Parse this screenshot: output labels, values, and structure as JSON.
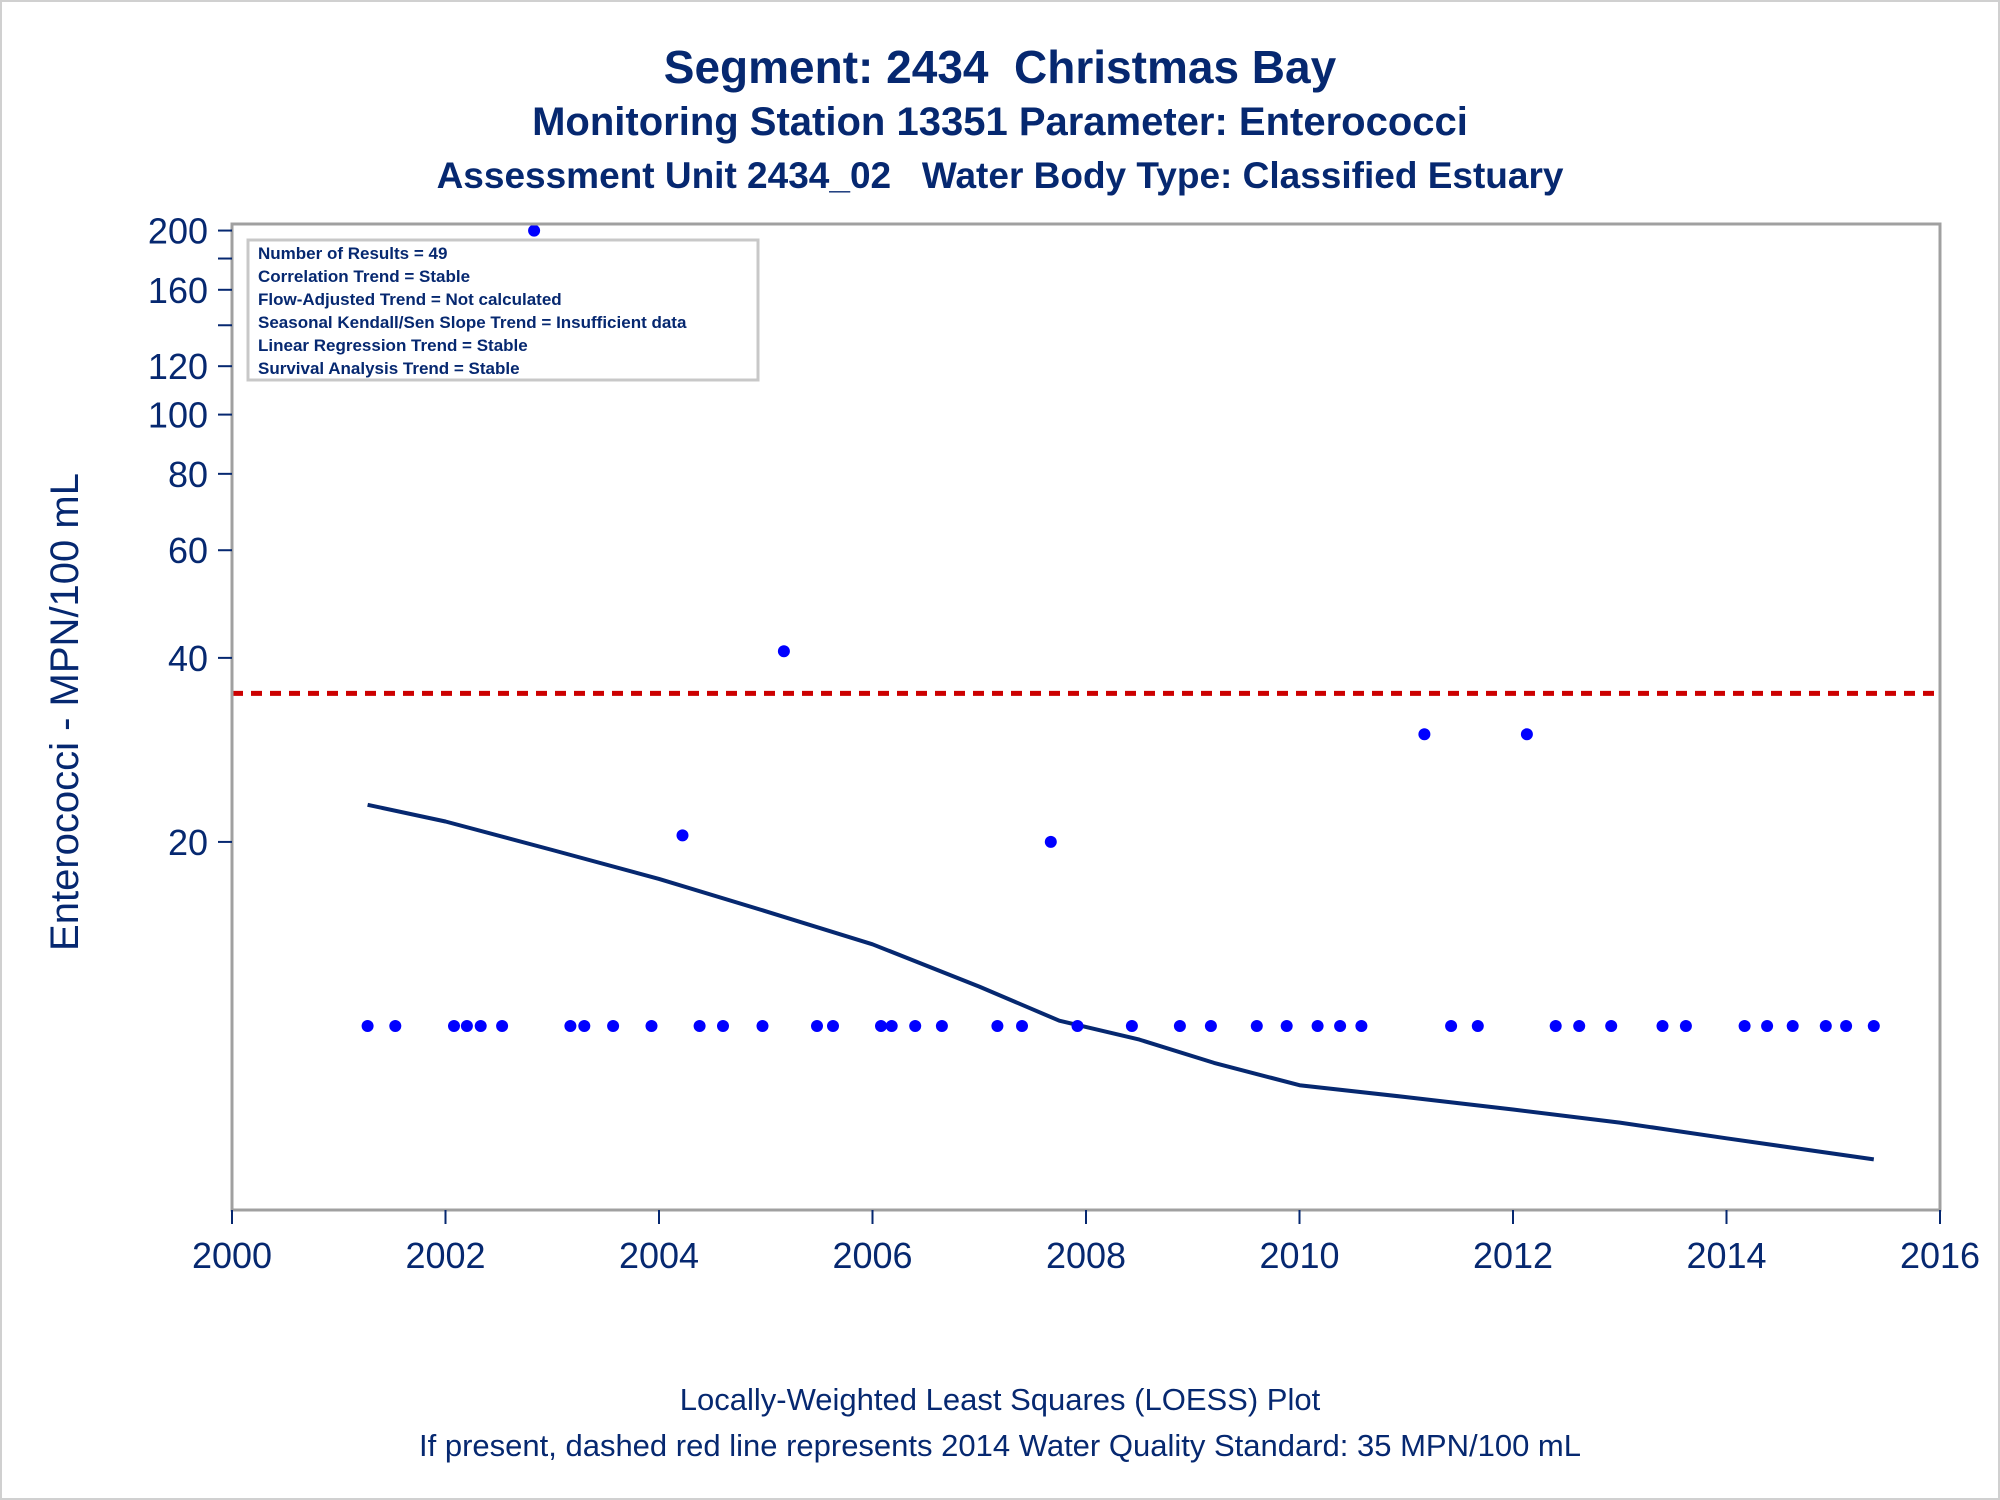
{
  "titles": {
    "line1": "Segment: 2434  Christmas Bay",
    "line2": "Monitoring Station 13351 Parameter: Enterococci",
    "line3": "Assessment Unit 2434_02   Water Body Type: Classified Estuary"
  },
  "footnotes": {
    "line1": "Locally-Weighted Least Squares (LOESS) Plot",
    "line2": "If present, dashed red line represents 2014 Water Quality Standard: 35 MPN/100 mL"
  },
  "inset": [
    "Number of Results = 49",
    "Correlation Trend = Stable",
    "Flow-Adjusted Trend = Not calculated",
    "Seasonal Kendall/Sen Slope Trend = Insufficient data",
    "Linear Regression Trend = Stable",
    "Survival Analysis Trend = Stable"
  ],
  "colors": {
    "text": "#062870",
    "points": "#0000ff",
    "loess": "#062870",
    "standard": "#cc0000",
    "frame": "#a0a0a0"
  },
  "chart_data": {
    "type": "scatter",
    "ylabel": "Enterococci - MPN/100 mL",
    "xlabel": "",
    "y_scale": "log",
    "xlim": [
      2000,
      2016
    ],
    "ylim": [
      5,
      205
    ],
    "x_ticks": [
      2000,
      2002,
      2004,
      2006,
      2008,
      2010,
      2012,
      2014,
      2016
    ],
    "y_ticks_labeled": [
      20,
      40,
      60,
      80,
      100,
      120,
      160,
      200
    ],
    "y_ticks_minor": [
      140,
      180
    ],
    "grid": false,
    "standard_line": {
      "value": 35,
      "style": "dashed"
    },
    "points": [
      [
        2001.27,
        10
      ],
      [
        2001.53,
        10
      ],
      [
        2002.08,
        10
      ],
      [
        2002.2,
        10
      ],
      [
        2002.33,
        10
      ],
      [
        2002.53,
        10
      ],
      [
        2002.83,
        200
      ],
      [
        2003.17,
        10
      ],
      [
        2003.3,
        10
      ],
      [
        2003.57,
        10
      ],
      [
        2003.93,
        10
      ],
      [
        2004.22,
        20.5
      ],
      [
        2004.38,
        10
      ],
      [
        2004.6,
        10
      ],
      [
        2004.97,
        10
      ],
      [
        2005.17,
        41
      ],
      [
        2005.48,
        10
      ],
      [
        2005.63,
        10
      ],
      [
        2006.08,
        10
      ],
      [
        2006.18,
        10
      ],
      [
        2006.4,
        10
      ],
      [
        2006.65,
        10
      ],
      [
        2007.17,
        10
      ],
      [
        2007.4,
        10
      ],
      [
        2007.67,
        20
      ],
      [
        2007.92,
        10
      ],
      [
        2008.43,
        10
      ],
      [
        2008.88,
        10
      ],
      [
        2009.17,
        10
      ],
      [
        2009.6,
        10
      ],
      [
        2009.88,
        10
      ],
      [
        2010.17,
        10
      ],
      [
        2010.38,
        10
      ],
      [
        2010.58,
        10
      ],
      [
        2011.17,
        30
      ],
      [
        2011.42,
        10
      ],
      [
        2011.67,
        10
      ],
      [
        2012.13,
        30
      ],
      [
        2012.4,
        10
      ],
      [
        2012.62,
        10
      ],
      [
        2012.92,
        10
      ],
      [
        2013.4,
        10
      ],
      [
        2013.62,
        10
      ],
      [
        2014.17,
        10
      ],
      [
        2014.38,
        10
      ],
      [
        2014.62,
        10
      ],
      [
        2014.93,
        10
      ],
      [
        2015.12,
        10
      ],
      [
        2015.38,
        10
      ]
    ],
    "loess": [
      [
        2001.27,
        23.0
      ],
      [
        2002.0,
        21.6
      ],
      [
        2003.0,
        19.4
      ],
      [
        2004.0,
        17.4
      ],
      [
        2005.0,
        15.4
      ],
      [
        2006.0,
        13.6
      ],
      [
        2007.0,
        11.6
      ],
      [
        2007.75,
        10.2
      ],
      [
        2008.5,
        9.5
      ],
      [
        2009.2,
        8.7
      ],
      [
        2010.0,
        8.0
      ],
      [
        2011.0,
        7.65
      ],
      [
        2012.0,
        7.3
      ],
      [
        2013.0,
        6.95
      ],
      [
        2014.0,
        6.55
      ],
      [
        2015.38,
        6.05
      ]
    ]
  }
}
